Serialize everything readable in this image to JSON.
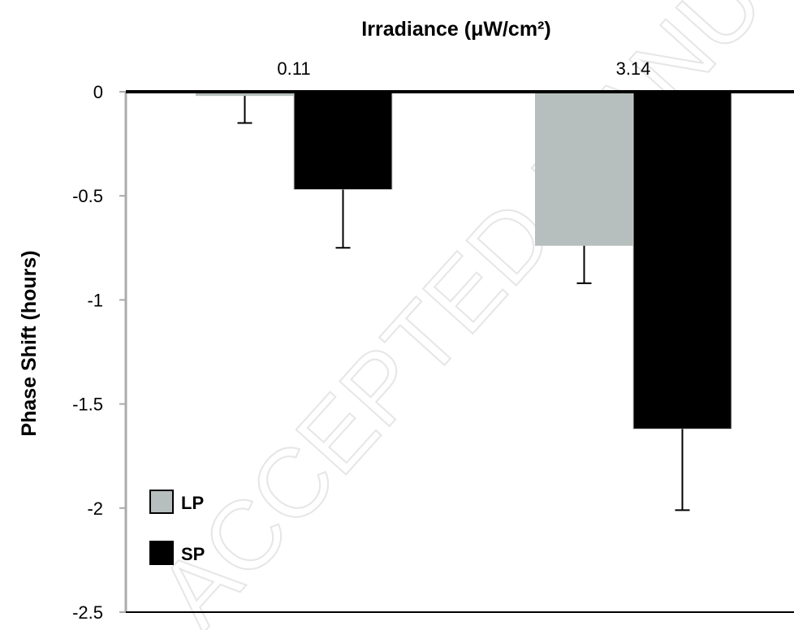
{
  "chart_data": {
    "type": "bar",
    "title": "Irradiance (μW/cm²)",
    "xlabel": "Irradiance (μW/cm²)",
    "ylabel": "Phase Shift (hours)",
    "categories": [
      "0.11",
      "3.14"
    ],
    "ylim": [
      -2.5,
      0
    ],
    "yticks": [
      0,
      -0.5,
      -1,
      -1.5,
      -2,
      -2.5
    ],
    "ytick_labels": [
      "0",
      "-0.5",
      "-1",
      "-1.5",
      "-2",
      "-2.5"
    ],
    "grid": false,
    "legend_position": "bottom-left",
    "series": [
      {
        "name": "LP",
        "color": "#b6bfbd",
        "values": [
          -0.02,
          -0.74
        ],
        "errors": [
          0.13,
          0.18
        ]
      },
      {
        "name": "SP",
        "color": "#000000",
        "values": [
          -0.47,
          -1.62
        ],
        "errors": [
          0.28,
          0.39
        ]
      }
    ]
  },
  "watermark": "ACCEPTED MANUSCRIPT"
}
